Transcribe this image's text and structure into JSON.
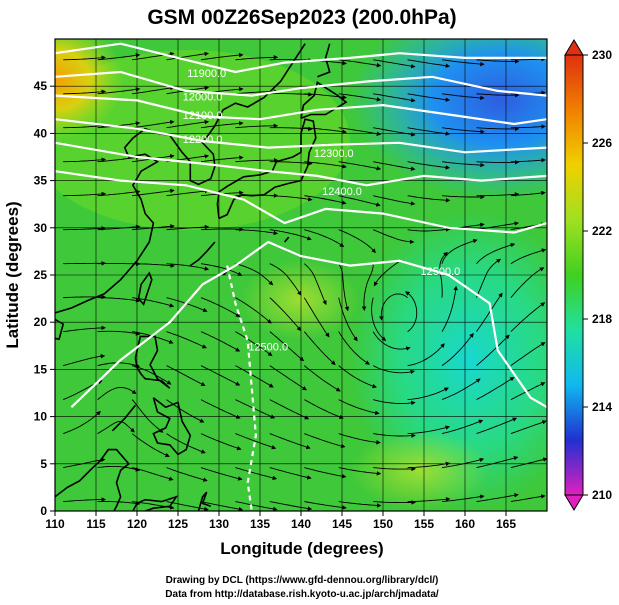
{
  "title": "GSM 00Z26Sep2023 (200.0hPa)",
  "xlabel": "Longitude (degrees)",
  "ylabel": "Latitude  (degrees)",
  "credits": [
    "Drawing by DCL (https://www.gfd-dennou.org/library/dcl/)",
    "Data from http://database.rish.kyoto-u.ac.jp/arch/jmadata/"
  ],
  "chart_data": {
    "type": "heatmap",
    "variable": "temperature field with geopotential height contours and streamlines",
    "xlim": [
      110,
      170
    ],
    "ylim": [
      0,
      50
    ],
    "x_ticks": [
      110,
      115,
      120,
      125,
      130,
      135,
      140,
      145,
      150,
      155,
      160,
      165
    ],
    "y_ticks": [
      0,
      5,
      10,
      15,
      20,
      25,
      30,
      35,
      40,
      45
    ],
    "colorbar": {
      "min": 210,
      "max": 230,
      "ticks": [
        210,
        214,
        218,
        222,
        226,
        230
      ],
      "colors": [
        "#e020c0",
        "#2030d0",
        "#10b8f0",
        "#20e0a0",
        "#40d020",
        "#a0e020",
        "#f0d000",
        "#f08000",
        "#e03010"
      ]
    },
    "contours": [
      {
        "label": "11900.0",
        "lon": 128.5,
        "lat": 46.0
      },
      {
        "label": "12000.0",
        "lon": 128.0,
        "lat": 43.5
      },
      {
        "label": "12100.0",
        "lon": 128.0,
        "lat": 41.5
      },
      {
        "label": "12200.0",
        "lon": 128.0,
        "lat": 39.0
      },
      {
        "label": "12300.0",
        "lon": 144.0,
        "lat": 37.5
      },
      {
        "label": "12400.0",
        "lon": 145.0,
        "lat": 33.5
      },
      {
        "label": "12500.0",
        "lon": 157.0,
        "lat": 25.0
      },
      {
        "label": "12500.0",
        "lon": 136.0,
        "lat": 17.0
      }
    ],
    "cyclone_center": {
      "lon": 152.0,
      "lat": 20.0
    }
  }
}
